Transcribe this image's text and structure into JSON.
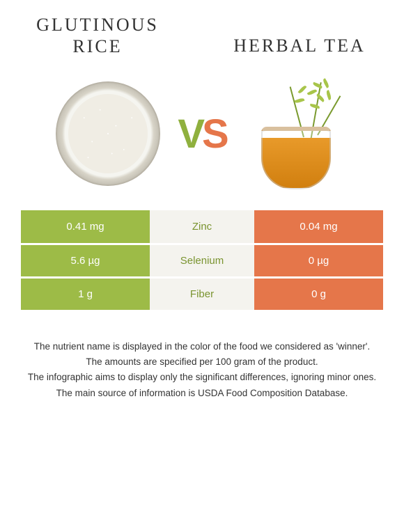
{
  "left": {
    "title": "Glutinous rice"
  },
  "right": {
    "title": "Herbal tea"
  },
  "vs": {
    "v": "V",
    "s": "S"
  },
  "colors": {
    "left_bg": "#9dbb47",
    "right_bg": "#e5764a",
    "mid_bg": "#f4f3ee",
    "nutrient_winner_left": "#7a9430",
    "nutrient_winner_right": "#d15f35"
  },
  "rows": [
    {
      "left": "0.41 mg",
      "nutrient": "Zinc",
      "right": "0.04 mg",
      "winner": "left"
    },
    {
      "left": "5.6 µg",
      "nutrient": "Selenium",
      "right": "0 µg",
      "winner": "left"
    },
    {
      "left": "1 g",
      "nutrient": "Fiber",
      "right": "0 g",
      "winner": "left"
    }
  ],
  "footer": {
    "l1": "The nutrient name is displayed in the color of the food we considered as 'winner'.",
    "l2": "The amounts are specified per 100 gram of the product.",
    "l3": "The infographic aims to display only the significant differences, ignoring minor ones.",
    "l4": "The main source of information is USDA Food Composition Database."
  }
}
